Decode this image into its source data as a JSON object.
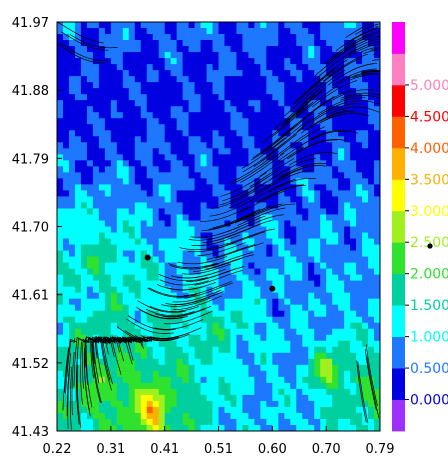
{
  "chart_data": {
    "type": "heatmap",
    "title": "",
    "xlabel": "",
    "ylabel": "",
    "xlim": [
      0.22,
      0.79
    ],
    "ylim": [
      41.43,
      41.97
    ],
    "x_ticks": [
      "0.22",
      "0.31",
      "0.41",
      "0.51",
      "0.60",
      "0.70",
      "0.79"
    ],
    "y_ticks": [
      "41.97",
      "41.88",
      "41.79",
      "41.70",
      "41.61",
      "41.52",
      "41.43"
    ],
    "colorbar": {
      "min": 0.0,
      "max": 5.5,
      "step": 0.5,
      "tick_labels": [
        "0.000",
        "0.500",
        "1.000",
        "1.500",
        "2.000",
        "2.500",
        "3.000",
        "3.500",
        "4.000",
        "4.500",
        "5.000"
      ],
      "colors": [
        "#9b30ff",
        "#0000e0",
        "#1e78ff",
        "#00ffff",
        "#00d0a0",
        "#2ee22e",
        "#a0f020",
        "#ffff00",
        "#ffb000",
        "#ff6000",
        "#ff0000",
        "#ff80c0",
        "#ff00ff"
      ]
    },
    "markers": [
      {
        "x": 0.38,
        "y": 41.659
      },
      {
        "x": 0.6,
        "y": 41.618
      }
    ],
    "streamlines": "wind/current vector field (black streamlines)"
  }
}
